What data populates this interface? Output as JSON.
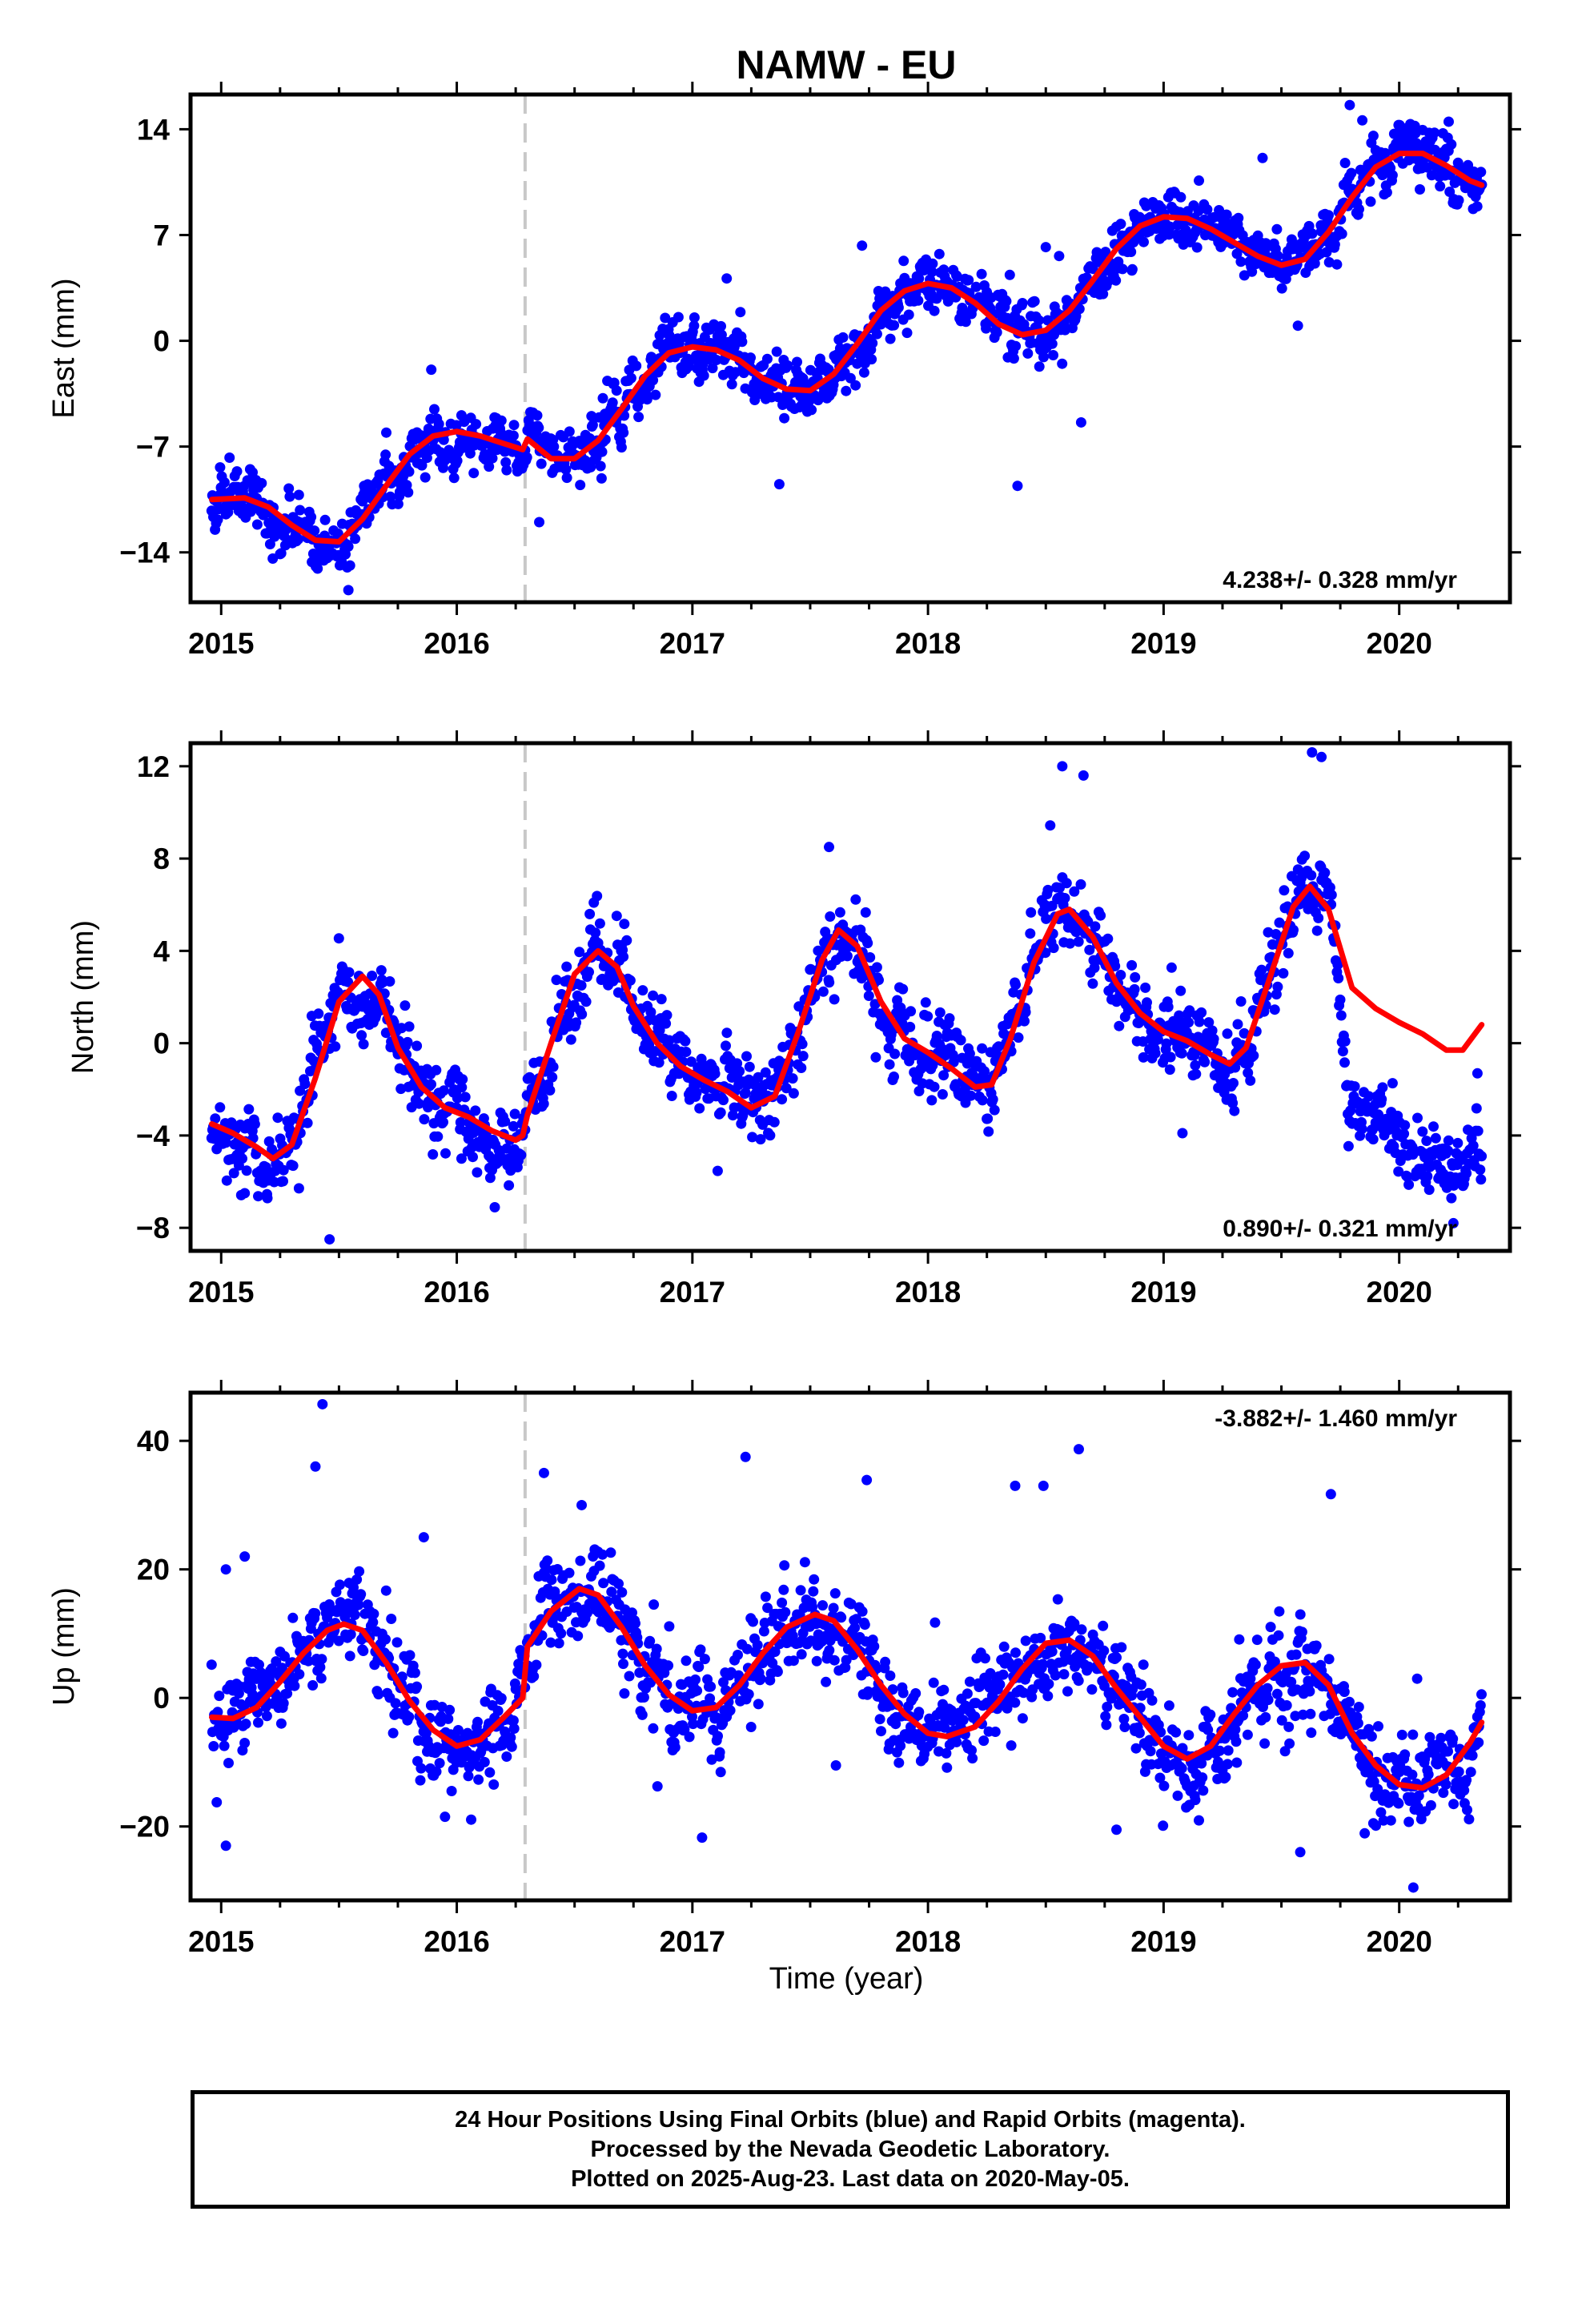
{
  "title": "NAMW - EU",
  "xlabel": "Time (year)",
  "caption": {
    "line1": "24 Hour Positions Using Final Orbits (blue) and Rapid Orbits (magenta).",
    "line2": "Processed by the Nevada Geodetic Laboratory.",
    "line3": "Plotted on 2025-Aug-23. Last data on 2020-May-05."
  },
  "colors": {
    "final_orbits": "#0000ff",
    "model_fit": "#ff0000",
    "event_line": "#c8c8c8"
  },
  "chart_data": [
    {
      "type": "scatter",
      "ylabel": "East (mm)",
      "rate_label": "4.238+/- 0.328 mm/yr",
      "xlim": [
        2014.87,
        2020.47
      ],
      "ylim": [
        -17.3,
        16.3
      ],
      "xticks": [
        2015,
        2016,
        2017,
        2018,
        2019,
        2020
      ],
      "yticks": [
        14,
        7,
        0,
        -7,
        -14
      ],
      "ytick_labels": [
        "14",
        "7",
        "0",
        "−7",
        "−14"
      ],
      "event_line_x": 2016.29,
      "fit": {
        "name": "model fit",
        "x": [
          2014.96,
          2015.1,
          2015.2,
          2015.3,
          2015.4,
          2015.5,
          2015.6,
          2015.7,
          2015.8,
          2015.9,
          2016.0,
          2016.1,
          2016.2,
          2016.28,
          2016.3,
          2016.4,
          2016.5,
          2016.6,
          2016.7,
          2016.8,
          2016.9,
          2017.0,
          2017.1,
          2017.2,
          2017.3,
          2017.4,
          2017.5,
          2017.6,
          2017.7,
          2017.8,
          2017.9,
          2018.0,
          2018.1,
          2018.2,
          2018.3,
          2018.4,
          2018.5,
          2018.6,
          2018.7,
          2018.8,
          2018.9,
          2019.0,
          2019.1,
          2019.2,
          2019.3,
          2019.4,
          2019.5,
          2019.6,
          2019.7,
          2019.8,
          2019.9,
          2020.0,
          2020.1,
          2020.2,
          2020.3,
          2020.35
        ],
        "y": [
          -10.5,
          -10.4,
          -11.0,
          -12.2,
          -13.2,
          -13.3,
          -11.8,
          -9.6,
          -7.5,
          -6.3,
          -6.0,
          -6.3,
          -6.8,
          -7.2,
          -6.5,
          -7.8,
          -7.8,
          -6.6,
          -4.5,
          -2.3,
          -0.8,
          -0.4,
          -0.6,
          -1.3,
          -2.5,
          -3.2,
          -3.3,
          -2.2,
          -0.2,
          2.0,
          3.3,
          3.8,
          3.5,
          2.5,
          1.1,
          0.4,
          0.7,
          2.0,
          4.0,
          6.1,
          7.6,
          8.2,
          8.1,
          7.4,
          6.5,
          5.6,
          5.0,
          5.4,
          7.2,
          9.5,
          11.5,
          12.4,
          12.4,
          11.6,
          10.6,
          10.3
        ]
      },
      "scatter": {
        "name": "Final Orbits",
        "n": 1500,
        "noise": 1.1,
        "step": 0.7,
        "seed": 11,
        "outliers": [
          [
            2018.38,
            -9.6
          ],
          [
            2018.65,
            -5.4
          ],
          [
            2019.57,
            1.0
          ],
          [
            2019.79,
            15.6
          ],
          [
            2019.42,
            12.1
          ],
          [
            2015.54,
            -16.5
          ],
          [
            2016.35,
            -12.0
          ],
          [
            2020.21,
            14.5
          ],
          [
            2017.72,
            6.3
          ],
          [
            2018.5,
            6.2
          ],
          [
            2019.15,
            10.6
          ],
          [
            2016.62,
            -3.8
          ]
        ]
      }
    },
    {
      "type": "scatter",
      "ylabel": "North (mm)",
      "rate_label": "0.890+/- 0.321 mm/yr",
      "xlim": [
        2014.87,
        2020.47
      ],
      "ylim": [
        -9.0,
        13.0
      ],
      "xticks": [
        2015,
        2016,
        2017,
        2018,
        2019,
        2020
      ],
      "yticks": [
        12,
        8,
        4,
        0,
        -4,
        -8
      ],
      "ytick_labels": [
        "12",
        "8",
        "4",
        "0",
        "−4",
        "−8"
      ],
      "event_line_x": 2016.29,
      "fit": {
        "name": "model fit",
        "x": [
          2014.96,
          2015.05,
          2015.15,
          2015.22,
          2015.3,
          2015.4,
          2015.5,
          2015.6,
          2015.67,
          2015.75,
          2015.85,
          2015.95,
          2016.05,
          2016.15,
          2016.25,
          2016.28,
          2016.3,
          2016.4,
          2016.5,
          2016.6,
          2016.68,
          2016.75,
          2016.85,
          2016.95,
          2017.05,
          2017.15,
          2017.25,
          2017.35,
          2017.45,
          2017.55,
          2017.62,
          2017.7,
          2017.8,
          2017.9,
          2018.0,
          2018.1,
          2018.2,
          2018.27,
          2018.35,
          2018.45,
          2018.55,
          2018.6,
          2018.7,
          2018.8,
          2018.9,
          2019.0,
          2019.1,
          2019.2,
          2019.28,
          2019.35,
          2019.45,
          2019.55,
          2019.62,
          2019.7,
          2019.8,
          2019.9,
          2020.0,
          2020.1,
          2020.2,
          2020.27,
          2020.35
        ],
        "y": [
          -3.5,
          -3.9,
          -4.5,
          -5.0,
          -4.4,
          -1.5,
          1.8,
          2.9,
          2.1,
          -0.2,
          -1.9,
          -2.8,
          -3.2,
          -3.8,
          -4.2,
          -4.0,
          -3.1,
          0.0,
          3.0,
          4.0,
          3.3,
          1.6,
          0.0,
          -1.0,
          -1.6,
          -2.1,
          -2.8,
          -2.3,
          0.5,
          3.6,
          4.9,
          4.2,
          1.8,
          0.2,
          -0.4,
          -1.1,
          -1.9,
          -1.8,
          0.2,
          3.5,
          5.6,
          5.8,
          4.6,
          2.6,
          1.3,
          0.5,
          0.1,
          -0.5,
          -0.9,
          -0.2,
          2.8,
          5.9,
          6.8,
          5.8,
          2.4,
          1.5,
          0.9,
          0.4,
          -0.3,
          -0.3,
          0.8
        ]
      },
      "scatter": {
        "name": "Final Orbits",
        "n": 1500,
        "noise": 1.0,
        "step": 0.6,
        "seed": 23,
        "offsets": [
          [
            2019.72,
            2020.4,
            -5.0
          ]
        ],
        "outliers": [
          [
            2015.46,
            -8.5
          ],
          [
            2018.57,
            12.0
          ],
          [
            2018.66,
            11.6
          ],
          [
            2019.63,
            12.6
          ],
          [
            2019.67,
            12.4
          ],
          [
            2019.08,
            -3.9
          ],
          [
            2017.58,
            8.5
          ],
          [
            2020.23,
            -7.8
          ],
          [
            2015.1,
            -6.5
          ],
          [
            2016.02,
            -5.0
          ]
        ]
      }
    },
    {
      "type": "scatter",
      "ylabel": "Up (mm)",
      "rate_label": "-3.882+/- 1.460 mm/yr",
      "xlim": [
        2014.87,
        2020.47
      ],
      "ylim": [
        -31.5,
        47.5
      ],
      "xticks": [
        2015,
        2016,
        2017,
        2018,
        2019,
        2020
      ],
      "yticks": [
        40,
        20,
        0,
        -20
      ],
      "ytick_labels": [
        "40",
        "20",
        "0",
        "−20"
      ],
      "event_line_x": 2016.29,
      "fit": {
        "name": "model fit",
        "x": [
          2014.96,
          2015.05,
          2015.15,
          2015.25,
          2015.35,
          2015.45,
          2015.52,
          2015.6,
          2015.7,
          2015.8,
          2015.9,
          2016.0,
          2016.1,
          2016.2,
          2016.28,
          2016.3,
          2016.4,
          2016.52,
          2016.6,
          2016.7,
          2016.8,
          2016.9,
          2017.0,
          2017.1,
          2017.2,
          2017.3,
          2017.4,
          2017.52,
          2017.6,
          2017.7,
          2017.8,
          2017.9,
          2018.0,
          2018.08,
          2018.2,
          2018.3,
          2018.4,
          2018.5,
          2018.6,
          2018.7,
          2018.8,
          2018.9,
          2019.0,
          2019.1,
          2019.2,
          2019.3,
          2019.4,
          2019.5,
          2019.6,
          2019.7,
          2019.8,
          2019.9,
          2020.0,
          2020.1,
          2020.2,
          2020.3,
          2020.35
        ],
        "y": [
          -3.0,
          -3.2,
          -1.5,
          2.5,
          7.0,
          10.5,
          11.5,
          10.5,
          5.5,
          -0.5,
          -5.0,
          -7.5,
          -6.5,
          -3.0,
          0.0,
          8.0,
          13.5,
          17.0,
          16.0,
          11.0,
          5.0,
          0.5,
          -2.0,
          -1.5,
          2.0,
          7.0,
          11.0,
          13.0,
          12.0,
          7.5,
          2.0,
          -2.5,
          -5.5,
          -6.0,
          -4.5,
          -0.5,
          4.5,
          8.5,
          9.0,
          6.5,
          1.5,
          -3.0,
          -7.5,
          -9.5,
          -7.5,
          -2.5,
          2.0,
          5.0,
          5.5,
          2.0,
          -5.5,
          -10.5,
          -13.5,
          -14.0,
          -12.0,
          -7.0,
          -3.8
        ]
      },
      "scatter": {
        "name": "Final Orbits",
        "n": 1500,
        "noise": 4.3,
        "step": 2.5,
        "seed": 37,
        "outliers": [
          [
            2015.43,
            45.7
          ],
          [
            2015.4,
            36.0
          ],
          [
            2016.37,
            35.0
          ],
          [
            2017.74,
            33.9
          ],
          [
            2018.37,
            33.0
          ],
          [
            2018.49,
            33.0
          ],
          [
            2018.64,
            38.7
          ],
          [
            2019.71,
            31.7
          ],
          [
            2016.53,
            30.0
          ],
          [
            2015.86,
            25.0
          ],
          [
            2015.1,
            22.0
          ],
          [
            2015.02,
            20.0
          ],
          [
            2020.06,
            -29.5
          ],
          [
            2015.02,
            -23.0
          ],
          [
            2019.58,
            -24.0
          ],
          [
            2015.95,
            -18.5
          ],
          [
            2018.8,
            -20.5
          ]
        ]
      }
    }
  ]
}
